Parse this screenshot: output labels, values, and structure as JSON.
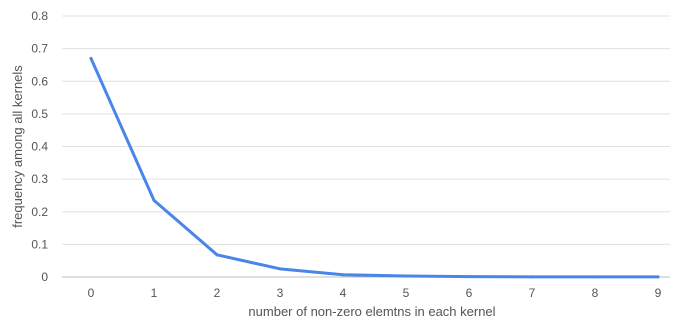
{
  "chart_data": {
    "type": "line",
    "title": "",
    "xlabel": "number of non-zero elemtns in each kernel",
    "ylabel": "frequency among all kernels",
    "x": [
      0,
      1,
      2,
      3,
      4,
      5,
      6,
      7,
      8,
      9
    ],
    "series": [
      {
        "name": "",
        "color": "#4a86e8",
        "values": [
          0.67,
          0.235,
          0.068,
          0.025,
          0.007,
          0.003,
          0.001,
          0.0005,
          0.0003,
          0.0002
        ]
      }
    ],
    "ylim": [
      0,
      0.8
    ],
    "yticks": [
      0,
      0.1,
      0.2,
      0.3,
      0.4,
      0.5,
      0.6,
      0.7,
      0.8
    ],
    "ytick_labels": [
      "0",
      "0.1",
      "0.2",
      "0.3",
      "0.4",
      "0.5",
      "0.6",
      "0.7",
      "0.8"
    ],
    "xtick_labels": [
      "0",
      "1",
      "2",
      "3",
      "4",
      "5",
      "6",
      "7",
      "8",
      "9"
    ],
    "grid": true,
    "legend": "none"
  }
}
